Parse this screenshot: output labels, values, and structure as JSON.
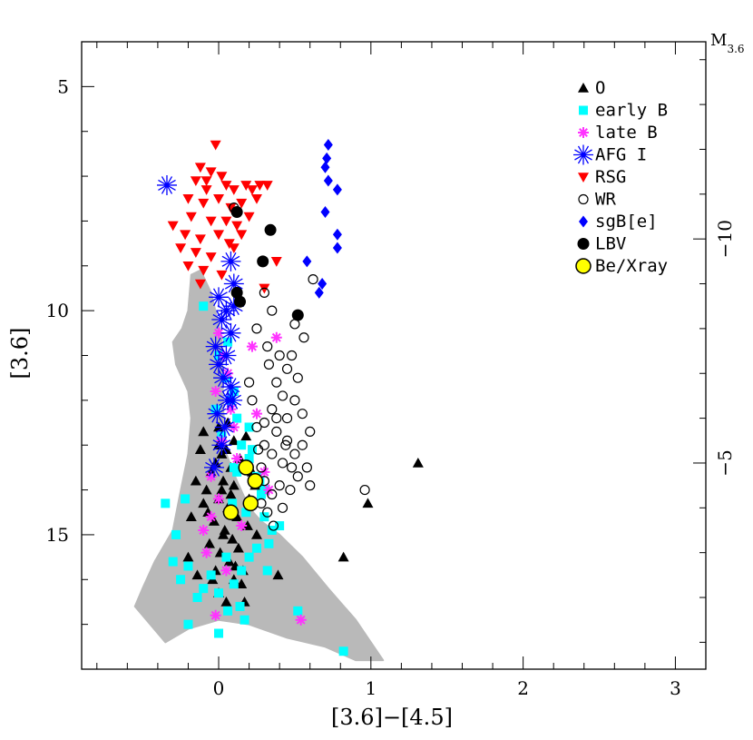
{
  "chart_data": {
    "type": "scatter",
    "xlabel": "[3.6]−[4.5]",
    "ylabel": "[3.6]",
    "right_axis_label_main": "M",
    "right_axis_label_sub": "3.6",
    "xlim": [
      -0.9,
      3.2
    ],
    "ylim": [
      18,
      4
    ],
    "y_inverted": true,
    "x_ticks": [
      0,
      1,
      2,
      3
    ],
    "x_tick_labels": [
      "0",
      "1",
      "2",
      "3"
    ],
    "y_ticks": [
      5,
      10,
      15
    ],
    "y_tick_labels": [
      "5",
      "10",
      "15"
    ],
    "right_ticks": [
      -10,
      -5
    ],
    "right_tick_labels": [
      "−10",
      "−5"
    ],
    "right_offset": 18.4,
    "grid": false,
    "legend_position": "top-right",
    "background_cloud_color": "#b9b9b9",
    "background_cloud_outline": [
      [
        -0.18,
        9.2
      ],
      [
        -0.12,
        9.1
      ],
      [
        -0.05,
        9.6
      ],
      [
        0.02,
        10.6
      ],
      [
        0.03,
        12.2
      ],
      [
        0.05,
        13.2
      ],
      [
        0.12,
        13.8
      ],
      [
        0.2,
        14.4
      ],
      [
        0.28,
        14.7
      ],
      [
        0.4,
        15.0
      ],
      [
        0.55,
        15.5
      ],
      [
        0.72,
        16.2
      ],
      [
        0.9,
        16.9
      ],
      [
        1.0,
        17.4
      ],
      [
        1.08,
        17.8
      ],
      [
        0.9,
        17.8
      ],
      [
        0.7,
        17.5
      ],
      [
        0.45,
        17.3
      ],
      [
        0.2,
        17.0
      ],
      [
        0.0,
        16.9
      ],
      [
        -0.2,
        17.1
      ],
      [
        -0.35,
        17.4
      ],
      [
        -0.45,
        17.0
      ],
      [
        -0.55,
        16.6
      ],
      [
        -0.5,
        16.2
      ],
      [
        -0.42,
        15.6
      ],
      [
        -0.3,
        14.9
      ],
      [
        -0.26,
        14.2
      ],
      [
        -0.2,
        13.2
      ],
      [
        -0.18,
        12.4
      ],
      [
        -0.2,
        11.8
      ],
      [
        -0.28,
        11.2
      ],
      [
        -0.3,
        10.7
      ],
      [
        -0.24,
        10.4
      ],
      [
        -0.2,
        10.0
      ]
    ],
    "series": [
      {
        "name": "O",
        "marker": "triangle-up",
        "color": "#000000",
        "points": [
          [
            0.0,
            13.0
          ],
          [
            0.02,
            13.2
          ],
          [
            -0.02,
            13.4
          ],
          [
            0.05,
            13.1
          ],
          [
            0.08,
            13.5
          ],
          [
            -0.05,
            13.6
          ],
          [
            0.03,
            13.8
          ],
          [
            0.1,
            13.9
          ],
          [
            -0.08,
            14.0
          ],
          [
            0.0,
            14.2
          ],
          [
            0.06,
            14.4
          ],
          [
            -0.1,
            14.3
          ],
          [
            0.12,
            14.6
          ],
          [
            -0.03,
            14.7
          ],
          [
            0.04,
            14.9
          ],
          [
            0.09,
            15.1
          ],
          [
            -0.06,
            15.2
          ],
          [
            0.01,
            15.4
          ],
          [
            0.07,
            15.6
          ],
          [
            -0.02,
            15.8
          ],
          [
            0.1,
            16.0
          ],
          [
            0.15,
            16.1
          ],
          [
            0.0,
            16.3
          ],
          [
            0.05,
            16.5
          ],
          [
            0.17,
            16.5
          ],
          [
            -0.12,
            13.1
          ],
          [
            0.14,
            13.3
          ],
          [
            0.18,
            12.8
          ],
          [
            -0.15,
            13.8
          ],
          [
            0.2,
            14.2
          ],
          [
            0.22,
            13.6
          ],
          [
            -0.18,
            14.6
          ],
          [
            0.25,
            15.0
          ],
          [
            -0.2,
            15.5
          ],
          [
            0.0,
            12.6
          ],
          [
            0.06,
            12.5
          ],
          [
            0.1,
            12.9
          ],
          [
            -0.1,
            12.7
          ],
          [
            0.13,
            15.3
          ],
          [
            -0.14,
            15.9
          ],
          [
            0.02,
            14.0
          ],
          [
            0.08,
            14.1
          ],
          [
            0.03,
            15.0
          ],
          [
            -0.04,
            16.0
          ],
          [
            0.11,
            15.7
          ],
          [
            0.16,
            15.8
          ],
          [
            0.19,
            14.8
          ],
          [
            -0.07,
            14.5
          ],
          [
            0.24,
            13.9
          ],
          [
            1.31,
            13.4
          ],
          [
            0.98,
            14.3
          ],
          [
            0.82,
            15.5
          ],
          [
            0.39,
            15.9
          ]
        ]
      },
      {
        "name": "early B",
        "marker": "square",
        "color": "#00ffff",
        "points": [
          [
            -0.1,
            9.9
          ],
          [
            0.0,
            11.0
          ],
          [
            0.05,
            11.5
          ],
          [
            0.08,
            12.0
          ],
          [
            0.12,
            12.4
          ],
          [
            0.15,
            13.0
          ],
          [
            0.2,
            13.3
          ],
          [
            0.25,
            13.7
          ],
          [
            0.28,
            14.1
          ],
          [
            0.3,
            14.6
          ],
          [
            0.35,
            14.9
          ],
          [
            0.33,
            15.2
          ],
          [
            0.4,
            14.8
          ],
          [
            0.2,
            15.5
          ],
          [
            0.15,
            15.8
          ],
          [
            0.1,
            16.1
          ],
          [
            0.0,
            16.3
          ],
          [
            -0.1,
            16.2
          ],
          [
            -0.2,
            15.7
          ],
          [
            -0.3,
            15.6
          ],
          [
            -0.28,
            15.0
          ],
          [
            -0.22,
            14.2
          ],
          [
            -0.35,
            14.3
          ],
          [
            0.18,
            14.5
          ],
          [
            0.25,
            15.3
          ],
          [
            0.32,
            15.8
          ],
          [
            0.14,
            16.6
          ],
          [
            0.17,
            16.9
          ],
          [
            0.06,
            16.7
          ],
          [
            -0.14,
            16.4
          ],
          [
            -0.25,
            16.0
          ],
          [
            0.27,
            13.8
          ],
          [
            0.22,
            13.1
          ],
          [
            0.12,
            13.6
          ],
          [
            0.09,
            14.3
          ],
          [
            0.05,
            15.5
          ],
          [
            -0.05,
            15.9
          ],
          [
            0.02,
            12.8
          ],
          [
            -0.02,
            12.2
          ],
          [
            0.1,
            11.8
          ],
          [
            0.2,
            12.6
          ],
          [
            0.06,
            10.7
          ],
          [
            0.0,
            17.2
          ],
          [
            -0.2,
            17.0
          ],
          [
            0.52,
            16.7
          ],
          [
            0.82,
            17.6
          ],
          [
            0.1,
            13.5
          ],
          [
            0.3,
            14.0
          ]
        ]
      },
      {
        "name": "late B",
        "marker": "asterisk",
        "color": "#ff33ff",
        "points": [
          [
            0.0,
            10.5
          ],
          [
            0.03,
            11.0
          ],
          [
            0.06,
            11.4
          ],
          [
            -0.02,
            11.8
          ],
          [
            0.08,
            12.2
          ],
          [
            0.1,
            12.6
          ],
          [
            0.02,
            12.9
          ],
          [
            0.12,
            13.3
          ],
          [
            -0.05,
            13.7
          ],
          [
            0.0,
            14.2
          ],
          [
            -0.05,
            14.6
          ],
          [
            -0.1,
            14.9
          ],
          [
            -0.08,
            15.4
          ],
          [
            0.05,
            15.8
          ],
          [
            0.22,
            10.8
          ],
          [
            0.38,
            10.6
          ],
          [
            0.33,
            14.0
          ],
          [
            -0.02,
            16.8
          ],
          [
            0.54,
            16.9
          ],
          [
            0.3,
            13.6
          ],
          [
            0.15,
            14.8
          ],
          [
            0.25,
            12.3
          ]
        ]
      },
      {
        "name": "AFG I",
        "marker": "star",
        "color": "#0000ff",
        "points": [
          [
            -0.34,
            7.2
          ],
          [
            0.08,
            8.9
          ],
          [
            0.1,
            9.4
          ],
          [
            0.0,
            9.7
          ],
          [
            0.05,
            10.0
          ],
          [
            0.02,
            10.2
          ],
          [
            0.08,
            10.5
          ],
          [
            -0.02,
            10.8
          ],
          [
            0.05,
            11.0
          ],
          [
            0.0,
            11.2
          ],
          [
            0.03,
            11.5
          ],
          [
            0.08,
            11.7
          ],
          [
            0.06,
            12.0
          ],
          [
            -0.01,
            12.3
          ],
          [
            0.04,
            12.6
          ],
          [
            0.09,
            12.0
          ],
          [
            0.02,
            13.0
          ],
          [
            -0.03,
            13.5
          ],
          [
            0.1,
            9.9
          ]
        ]
      },
      {
        "name": "RSG",
        "marker": "triangle-down",
        "color": "#ff0000",
        "points": [
          [
            -0.02,
            6.3
          ],
          [
            -0.12,
            6.8
          ],
          [
            -0.05,
            6.9
          ],
          [
            0.02,
            7.0
          ],
          [
            -0.15,
            7.1
          ],
          [
            0.05,
            7.2
          ],
          [
            -0.08,
            7.3
          ],
          [
            0.1,
            7.3
          ],
          [
            0.18,
            7.2
          ],
          [
            0.22,
            7.3
          ],
          [
            0.27,
            7.2
          ],
          [
            0.32,
            7.2
          ],
          [
            -0.2,
            7.5
          ],
          [
            -0.1,
            7.6
          ],
          [
            0.0,
            7.5
          ],
          [
            0.08,
            7.7
          ],
          [
            0.15,
            7.6
          ],
          [
            -0.18,
            7.9
          ],
          [
            -0.05,
            8.0
          ],
          [
            0.05,
            8.0
          ],
          [
            0.12,
            8.1
          ],
          [
            0.2,
            7.9
          ],
          [
            -0.22,
            8.3
          ],
          [
            -0.12,
            8.4
          ],
          [
            0.0,
            8.3
          ],
          [
            0.07,
            8.5
          ],
          [
            -0.25,
            8.6
          ],
          [
            -0.15,
            8.7
          ],
          [
            -0.05,
            8.8
          ],
          [
            0.1,
            8.6
          ],
          [
            -0.2,
            9.0
          ],
          [
            -0.1,
            9.1
          ],
          [
            0.3,
            9.5
          ],
          [
            0.38,
            8.9
          ],
          [
            -0.12,
            9.4
          ],
          [
            0.15,
            8.3
          ],
          [
            -0.3,
            8.1
          ],
          [
            0.02,
            9.2
          ],
          [
            0.25,
            7.5
          ],
          [
            -0.08,
            7.1
          ]
        ]
      },
      {
        "name": "WR",
        "marker": "circle-open",
        "color": "#000000",
        "points": [
          [
            0.3,
            9.6
          ],
          [
            0.35,
            10.0
          ],
          [
            0.32,
            10.8
          ],
          [
            0.4,
            11.0
          ],
          [
            0.45,
            11.3
          ],
          [
            0.38,
            11.6
          ],
          [
            0.42,
            11.9
          ],
          [
            0.35,
            12.2
          ],
          [
            0.3,
            12.5
          ],
          [
            0.38,
            12.7
          ],
          [
            0.45,
            12.9
          ],
          [
            0.3,
            13.0
          ],
          [
            0.35,
            13.2
          ],
          [
            0.42,
            13.4
          ],
          [
            0.48,
            13.5
          ],
          [
            0.28,
            13.5
          ],
          [
            0.3,
            13.8
          ],
          [
            0.4,
            13.9
          ],
          [
            0.35,
            14.1
          ],
          [
            0.28,
            14.3
          ],
          [
            0.32,
            14.5
          ],
          [
            0.36,
            14.8
          ],
          [
            0.5,
            13.2
          ],
          [
            0.55,
            13.0
          ],
          [
            0.45,
            12.4
          ],
          [
            0.5,
            12.0
          ],
          [
            0.52,
            11.5
          ],
          [
            0.48,
            11.0
          ],
          [
            0.56,
            10.6
          ],
          [
            0.6,
            12.7
          ],
          [
            0.58,
            13.5
          ],
          [
            0.6,
            13.9
          ],
          [
            0.62,
            9.3
          ],
          [
            0.25,
            10.4
          ],
          [
            0.2,
            11.6
          ],
          [
            0.22,
            12.0
          ],
          [
            0.25,
            12.6
          ],
          [
            0.5,
            10.3
          ],
          [
            0.42,
            14.4
          ],
          [
            0.47,
            14.0
          ],
          [
            0.55,
            12.3
          ],
          [
            0.33,
            11.2
          ],
          [
            0.38,
            12.4
          ],
          [
            0.44,
            13.0
          ],
          [
            0.52,
            13.7
          ],
          [
            0.26,
            13.1
          ],
          [
            0.96,
            14.0
          ],
          [
            0.1,
            7.7
          ]
        ]
      },
      {
        "name": "sgB[e]",
        "marker": "diamond",
        "color": "#0000ff",
        "points": [
          [
            0.72,
            6.3
          ],
          [
            0.71,
            6.6
          ],
          [
            0.7,
            6.8
          ],
          [
            0.72,
            7.1
          ],
          [
            0.78,
            7.3
          ],
          [
            0.7,
            7.8
          ],
          [
            0.78,
            8.3
          ],
          [
            0.78,
            8.6
          ],
          [
            0.58,
            8.9
          ],
          [
            0.68,
            9.4
          ],
          [
            0.66,
            9.6
          ]
        ]
      },
      {
        "name": "LBV",
        "marker": "circle-filled",
        "color": "#000000",
        "points": [
          [
            0.12,
            7.8
          ],
          [
            0.34,
            8.2
          ],
          [
            0.29,
            8.9
          ],
          [
            0.12,
            9.6
          ],
          [
            0.14,
            9.8
          ],
          [
            0.52,
            10.1
          ]
        ]
      },
      {
        "name": "Be/Xray",
        "marker": "circle-yellow",
        "color": "#ffff00",
        "points": [
          [
            0.18,
            13.5
          ],
          [
            0.24,
            13.8
          ],
          [
            0.21,
            14.3
          ],
          [
            0.08,
            14.5
          ]
        ]
      }
    ]
  }
}
